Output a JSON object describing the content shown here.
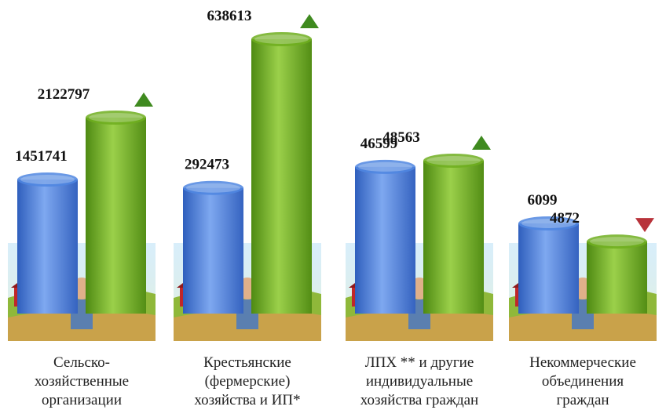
{
  "chart_data": {
    "type": "bar",
    "categories": [
      [
        "Сельско-",
        "хозяйственные",
        "организации"
      ],
      [
        "Крестьянские",
        "(фермерские)",
        "хозяйства и ИП*"
      ],
      [
        "ЛПХ ** и другие",
        "индивидуальные",
        "хозяйства граждан"
      ],
      [
        "Некоммерческие",
        "объединения",
        "граждан"
      ]
    ],
    "series": [
      {
        "color": "#4f86e0",
        "values": [
          1451741,
          292473,
          46599,
          6099
        ]
      },
      {
        "color": "#6fae1f",
        "values": [
          2122797,
          638613,
          48563,
          4872
        ]
      }
    ],
    "increase_color": "#3f8a1f",
    "decrease_color": "#b8323a"
  }
}
